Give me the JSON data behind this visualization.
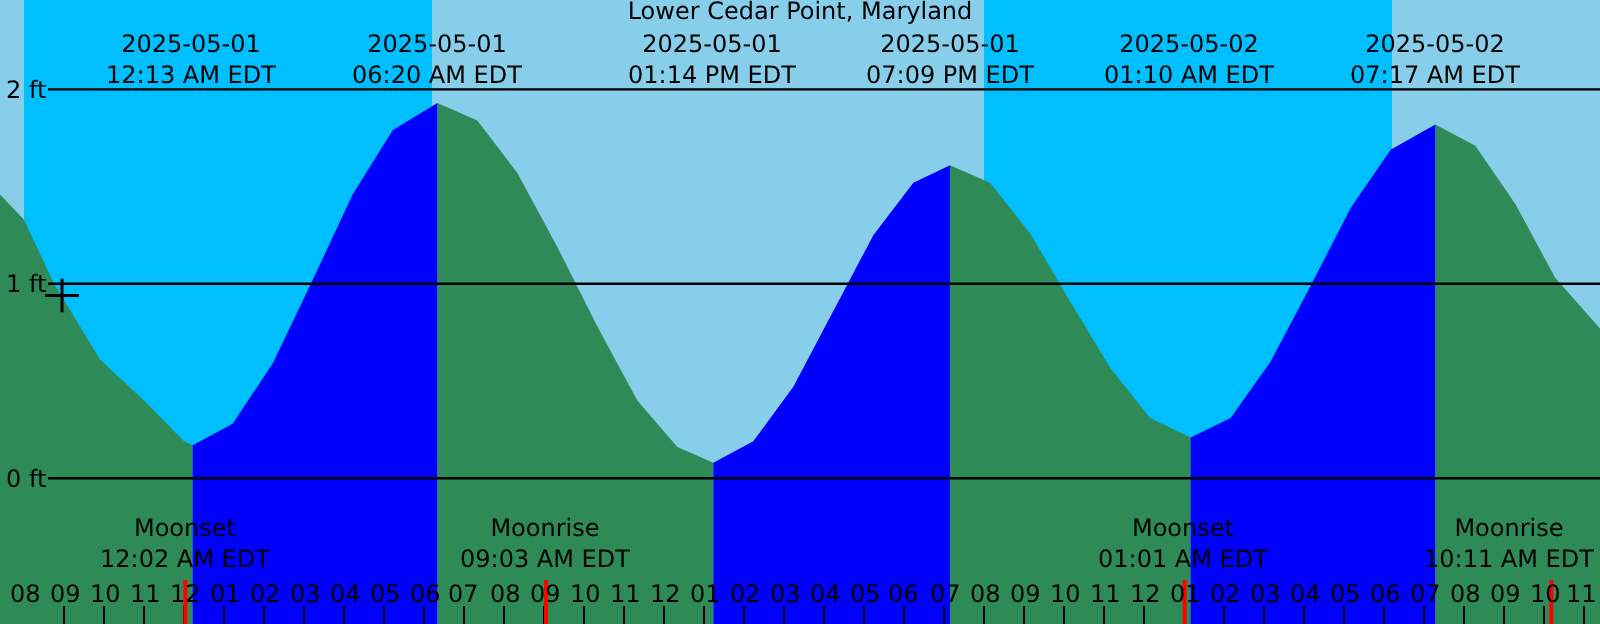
{
  "chart_data": {
    "type": "area",
    "title": "Lower Cedar Point, Maryland",
    "x": [
      "2025-04-30T19:24",
      "2025-04-30T20:00",
      "2025-04-30T20:45",
      "2025-04-30T21:54",
      "2025-04-30T23:00",
      "2025-05-01T00:00",
      "2025-05-01T00:13",
      "2025-05-01T01:13",
      "2025-05-01T02:13",
      "2025-05-01T03:13",
      "2025-05-01T04:13",
      "2025-05-01T05:13",
      "2025-05-01T06:20",
      "2025-05-01T07:20",
      "2025-05-01T08:20",
      "2025-05-01T09:20",
      "2025-05-01T10:20",
      "2025-05-01T11:20",
      "2025-05-01T12:20",
      "2025-05-01T13:14",
      "2025-05-01T14:14",
      "2025-05-01T15:14",
      "2025-05-01T16:14",
      "2025-05-01T17:14",
      "2025-05-01T18:14",
      "2025-05-01T19:09",
      "2025-05-01T20:09",
      "2025-05-01T21:09",
      "2025-05-01T22:09",
      "2025-05-01T23:09",
      "2025-05-02T00:09",
      "2025-05-02T01:10",
      "2025-05-02T02:10",
      "2025-05-02T03:10",
      "2025-05-02T04:10",
      "2025-05-02T05:10",
      "2025-05-02T06:10",
      "2025-05-02T07:17",
      "2025-05-02T08:17",
      "2025-05-02T09:17",
      "2025-05-02T10:17",
      "2025-05-02T11:24"
    ],
    "series": [
      {
        "color": "#2e8b57",
        "values": [
          1.46,
          1.33,
          1.0,
          0.61,
          0.4,
          0.19,
          0.17,
          null,
          null,
          null,
          null,
          null,
          1.93,
          1.84,
          1.57,
          1.19,
          0.78,
          0.4,
          0.16,
          0.08,
          null,
          null,
          null,
          null,
          null,
          1.61,
          1.52,
          1.26,
          0.91,
          0.57,
          0.31,
          0.21,
          null,
          null,
          null,
          null,
          null,
          1.82,
          1.71,
          1.41,
          1.03,
          0.77
        ]
      },
      {
        "color": "#0000ff",
        "values": [
          null,
          null,
          null,
          null,
          null,
          null,
          0.17,
          0.28,
          0.59,
          1.02,
          1.46,
          1.79,
          1.93,
          null,
          null,
          null,
          null,
          null,
          null,
          0.08,
          0.19,
          0.47,
          0.86,
          1.25,
          1.52,
          1.61,
          null,
          null,
          null,
          null,
          null,
          0.21,
          0.31,
          0.6,
          0.99,
          1.39,
          1.69,
          1.82,
          null,
          null,
          null,
          null
        ]
      },
      {
        "type": "scatter",
        "marker": "cross",
        "color": "#000000",
        "x": [
          "2025-04-30T20:57"
        ],
        "values": [
          0.94
        ]
      }
    ],
    "xlim": [
      "2025-04-30T19:24",
      "2025-05-02T11:24"
    ],
    "xticks": [
      {
        "value": "2025-04-30T20:00",
        "label": "08"
      },
      {
        "value": "2025-04-30T21:00",
        "label": "09"
      },
      {
        "value": "2025-04-30T22:00",
        "label": "10"
      },
      {
        "value": "2025-04-30T23:00",
        "label": "11"
      },
      {
        "value": "2025-05-01T00:00",
        "label": "12"
      },
      {
        "value": "2025-05-01T01:00",
        "label": "01"
      },
      {
        "value": "2025-05-01T02:00",
        "label": "02"
      },
      {
        "value": "2025-05-01T03:00",
        "label": "03"
      },
      {
        "value": "2025-05-01T04:00",
        "label": "04"
      },
      {
        "value": "2025-05-01T05:00",
        "label": "05"
      },
      {
        "value": "2025-05-01T06:00",
        "label": "06"
      },
      {
        "value": "2025-05-01T07:00",
        "label": "07"
      },
      {
        "value": "2025-05-01T08:00",
        "label": "08"
      },
      {
        "value": "2025-05-01T09:00",
        "label": "09"
      },
      {
        "value": "2025-05-01T10:00",
        "label": "10"
      },
      {
        "value": "2025-05-01T11:00",
        "label": "11"
      },
      {
        "value": "2025-05-01T12:00",
        "label": "12"
      },
      {
        "value": "2025-05-01T13:00",
        "label": "01"
      },
      {
        "value": "2025-05-01T14:00",
        "label": "02"
      },
      {
        "value": "2025-05-01T15:00",
        "label": "03"
      },
      {
        "value": "2025-05-01T16:00",
        "label": "04"
      },
      {
        "value": "2025-05-01T17:00",
        "label": "05"
      },
      {
        "value": "2025-05-01T18:00",
        "label": "06"
      },
      {
        "value": "2025-05-01T19:00",
        "label": "07"
      },
      {
        "value": "2025-05-01T20:00",
        "label": "08"
      },
      {
        "value": "2025-05-01T21:00",
        "label": "09"
      },
      {
        "value": "2025-05-01T22:00",
        "label": "10"
      },
      {
        "value": "2025-05-01T23:00",
        "label": "11"
      },
      {
        "value": "2025-05-02T00:00",
        "label": "12"
      },
      {
        "value": "2025-05-02T01:00",
        "label": "01"
      },
      {
        "value": "2025-05-02T02:00",
        "label": "02"
      },
      {
        "value": "2025-05-02T03:00",
        "label": "03"
      },
      {
        "value": "2025-05-02T04:00",
        "label": "04"
      },
      {
        "value": "2025-05-02T05:00",
        "label": "05"
      },
      {
        "value": "2025-05-02T06:00",
        "label": "06"
      },
      {
        "value": "2025-05-02T07:00",
        "label": "07"
      },
      {
        "value": "2025-05-02T08:00",
        "label": "08"
      },
      {
        "value": "2025-05-02T09:00",
        "label": "09"
      },
      {
        "value": "2025-05-02T10:00",
        "label": "10"
      },
      {
        "value": "2025-05-02T11:00",
        "label": "11"
      }
    ],
    "x2lim": [
      "2025-04-30T19:24",
      "2025-05-02T11:24"
    ],
    "x2ticks": [
      {
        "value": "2025-05-01T00:13",
        "label": "2025-05-01\n12:13 AM EDT"
      },
      {
        "value": "2025-05-01T06:20",
        "label": "2025-05-01\n06:20 AM EDT"
      },
      {
        "value": "2025-05-01T13:14",
        "label": "2025-05-01\n01:14 PM EDT"
      },
      {
        "value": "2025-05-01T19:09",
        "label": "2025-05-01\n07:09 PM EDT"
      },
      {
        "value": "2025-05-02T01:10",
        "label": "2025-05-02\n01:10 AM EDT"
      },
      {
        "value": "2025-05-02T07:17",
        "label": "2025-05-02\n07:17 AM EDT"
      }
    ],
    "ylim": [
      -0.75,
      2.46
    ],
    "yticks": [
      {
        "value": 0,
        "label": "0 ft"
      },
      {
        "value": 1,
        "label": "1 ft"
      },
      {
        "value": 2,
        "label": "2 ft"
      }
    ],
    "grid": "y",
    "bands": [
      {
        "axis": "x",
        "from": "2025-04-30T20:00",
        "to": "2025-05-01T06:12",
        "color": "#00bfff"
      },
      {
        "axis": "x",
        "from": "2025-05-01T20:00",
        "to": "2025-05-02T06:12",
        "color": "#00bfff"
      }
    ],
    "ref_lines": [
      {
        "axis": "x",
        "value": "2025-05-01T00:02",
        "label": "Moonset\n12:02 AM EDT",
        "color": "#ff0000"
      },
      {
        "axis": "x",
        "value": "2025-05-01T09:03",
        "label": "Moonrise\n09:03 AM EDT",
        "color": "#ff0000"
      },
      {
        "axis": "x",
        "value": "2025-05-02T01:01",
        "label": "Moonset\n01:01 AM EDT",
        "color": "#ff0000"
      },
      {
        "axis": "x",
        "value": "2025-05-02T10:11",
        "label": "Moonrise\n10:11 AM EDT",
        "color": "#ff0000"
      }
    ]
  }
}
